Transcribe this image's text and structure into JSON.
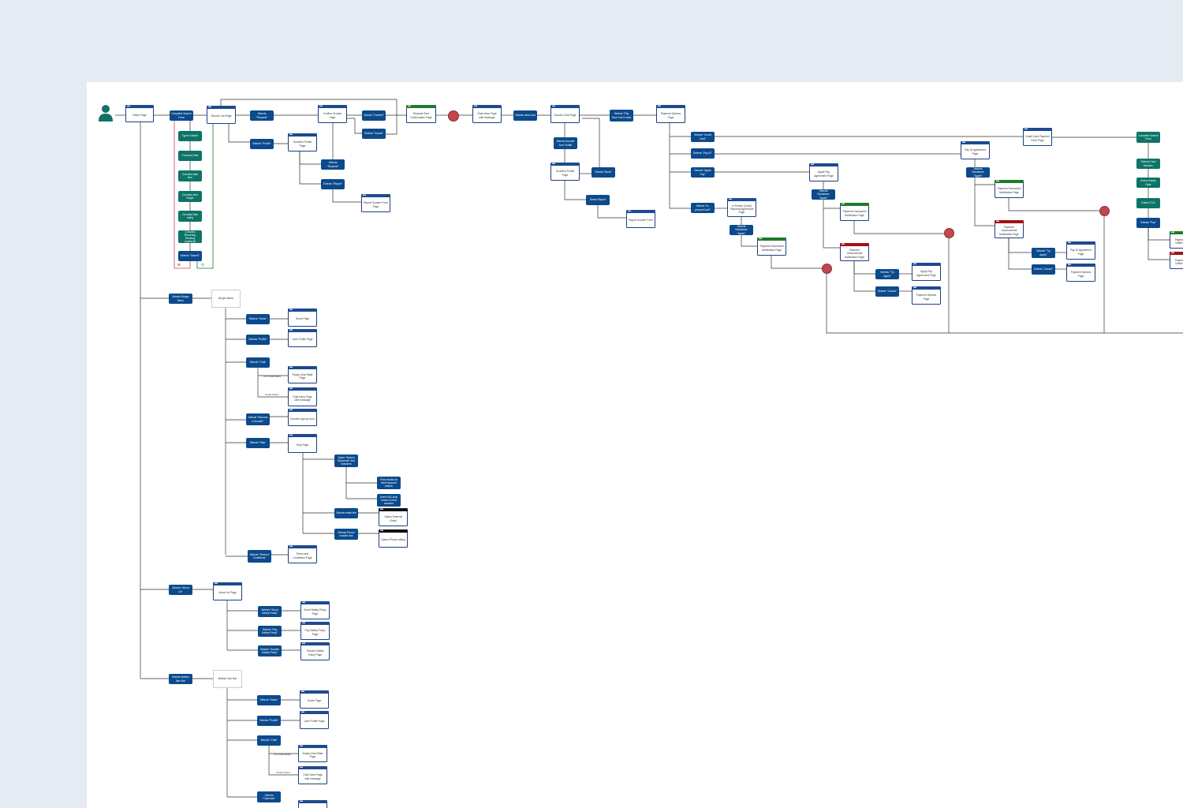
{
  "colors": {
    "background": "#e4ebf2",
    "canvas": "#ffffff",
    "action": "#0b4a8c",
    "step": "#0d7467",
    "decision": "#c0474d",
    "success": "#1f7a2a",
    "failure": "#a01313",
    "wire": "#333333"
  },
  "icons": {
    "user": "user-icon",
    "cancel": "x-circle-icon",
    "confirm": "check-circle-icon"
  },
  "nodes": {
    "visitor": {
      "home": "Visitor Page",
      "complete_search": "Complete Search Form"
    },
    "search_steps": [
      "Types Suburb",
      "Chooses Date",
      "Chooses start time",
      "Chooses time length",
      "Chooses Star rating",
      "Chooses Recurring Booking (optional)",
      "Selects \"Search\""
    ],
    "scooter_list": {
      "page": "Scooter List Page",
      "sel_request": "Selects \"Request\"",
      "sel_profile": "Selects \"Profile\"",
      "profile_page": "Scooters Profile Page",
      "sel_request2": "Selects \"Request\"",
      "sel_report": "Selects \"Report\"",
      "report_page": "Report Scooter Form Page"
    },
    "confirm": {
      "page": "Confirm Scooter Page",
      "sel_confirm": "Selects \"Confirm\"",
      "sel_cancel": "Selects \"Cancel\"",
      "request_sent": "Request Sent Confirmation Page",
      "chat_inbox": "Chat Inbox Page with message",
      "view_chat": "Selects view chat"
    },
    "chat": {
      "page": "Scooter Chat Page",
      "sel_profile_icon": "Selects Scooter Icon Profile",
      "profile_page": "Scooters Profile Page",
      "sel_book": "Selects \"Book\"",
      "sel_report": "Select Report",
      "report_form": "Report Scooter Form",
      "sel_pay_now": "Selects \"Pay Now\" link in chat"
    },
    "payment": {
      "options": "Payment Options Page",
      "credit": "Selects \"Credit Card\"",
      "payid": "Selects \"Pay ID\"",
      "apple": "Selects \"Apple Pay\"",
      "inperson": "Selects \"In-person/Cash\"",
      "in_person_page": "In Person (Cash) Payment Agreement Page",
      "sel_agree1": "Selects Disclaimer \"Agree\"",
      "success1": "Payment Successful Notification Page",
      "apple_page": "Apple Pay Agreement Page",
      "sel_agree2": "Selects Disclaimer \"Agree\"",
      "success2": "Payment Successful Notification Page",
      "unsuccess2": "Payment Unsuccessful Notification Page",
      "try_again2": "Selects \"Try Again\"",
      "apple_page2": "Apply Pay Agreement Page",
      "cancel2": "Selects \"Cancel\"",
      "options2": "Payment Options Page",
      "payid_page": "Pay ID Agreement Page",
      "sel_agree3": "Selects Disclaimer \"Agree\"",
      "success3": "Payment Successful Notification Page",
      "unsuccess3": "Payment Unsuccessful Notification Page",
      "try_again3": "Selects \"Try Again\"",
      "payid_page2": "Pay ID Agreement Page",
      "cancel3": "Selects \"Cancel\"",
      "options3": "Payment Options Page",
      "credit_form": "Credit Card Payment Form Page",
      "complete_form": "Complete Search Form",
      "card_number": "Selects Card Number",
      "expiry": "Enters Expiry Date",
      "cvv": "Enters CVV",
      "sel_pay": "Selects \"Pay\"",
      "edge_success": "Payme Notific",
      "edge_unsuccess": "Payme Notific"
    },
    "burger": {
      "sel": "Selects Burger Menu",
      "menu": "Burger Menu",
      "home": "Selects \"Home\"",
      "home_page": "Home Page",
      "profile": "Selects \"Profile\"",
      "profile_page": "User Profile Page",
      "chat": "Selects \"Chat\"",
      "no_history": "If no chat history",
      "empty_chat": "Empty Chat State Page",
      "if_history": "If chat history",
      "inbox": "Chat Inbox Page with message",
      "become": "Selects \"Become a Scooter\"",
      "signup": "Scooter sign up form",
      "help": "Selects \"Help\"",
      "help_page": "Help Page",
      "types_keyword": "Types \"Search Keywords\" and searches",
      "find_results": "Find results for their keyword search",
      "faq": "Uses FAQ drop downs to find answers",
      "email": "Selects email link",
      "ext_email": "Opens External Email",
      "phone": "Selects Phone number link",
      "phone_calling": "Opens Phone calling",
      "terms": "Selects \"Terms & Conditions\"",
      "terms_page": "Terms and Conditions Page"
    },
    "about": {
      "sel": "Selects \"About Us\"",
      "page": "About Us Page",
      "s1": "Selects \"Scoot Safety Policy\"",
      "p1": "Scoot Safety Policy Page",
      "s2": "Selects \"Pay Safety Policy\"",
      "p2": "Pay Safety Policy Page",
      "s3": "Selects \"Scooter Safety Policy\"",
      "p3": "Scooter Safety Policy Page"
    },
    "bottom": {
      "sel": "Selects Bottom Nav Bar",
      "bar": "Bottom Nav Bar",
      "home": "Selects \"Home\"",
      "home_page": "Home Page",
      "profile": "Selects \"Profile\"",
      "profile_page": "User Profile Page",
      "chat": "Selects \"Chat\"",
      "no_history": "If no chat history",
      "empty_chat": "Empty Chat State Page",
      "if_history": "If chat history",
      "inbox": "Chat Inbox Page with message",
      "calendar": "Selects \"Calendar\""
    }
  }
}
